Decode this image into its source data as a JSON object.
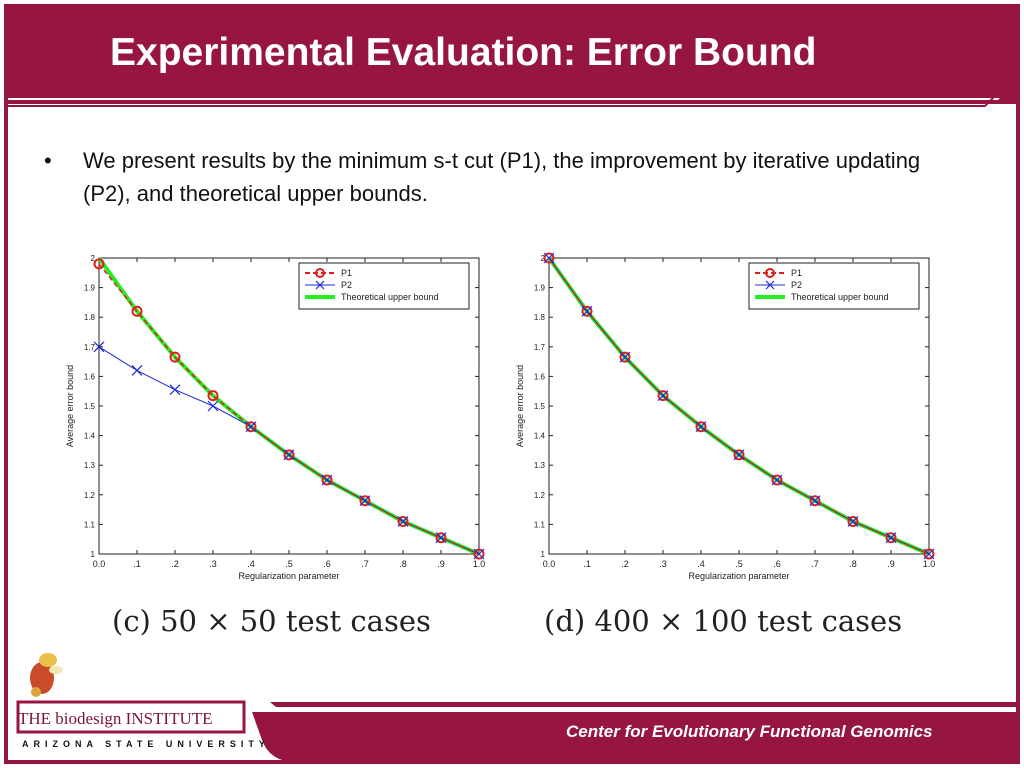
{
  "slide": {
    "title": "Experimental Evaluation: Error Bound",
    "bullet_symbol": "•",
    "bullet_text": "We present results by the minimum s-t cut (P1), the improvement by iterative updating (P2), and theoretical upper bounds.",
    "footer_text": "Center for Evolutionary Functional Genomics",
    "logo_line1": "THE biodesign INSTITUTE",
    "logo_line2": "ARIZONA STATE UNIVERSITY",
    "colors": {
      "brand_maroon": "#96163f",
      "p1": "#e01e1e",
      "p2": "#1f2ad6",
      "bound": "#22ee22"
    }
  },
  "chart_data": [
    {
      "type": "line",
      "caption": "(c) 50 × 50 test cases",
      "xlabel": "Regularization parameter",
      "ylabel": "Average error bound",
      "xlim": [
        0,
        1
      ],
      "ylim": [
        1,
        2
      ],
      "x_ticks": [
        "0.0",
        ".1",
        ".2",
        ".3",
        ".4",
        ".5",
        ".6",
        ".7",
        ".8",
        ".9",
        "1.0"
      ],
      "y_ticks": [
        "1",
        "1.1",
        "1.2",
        "1.3",
        "1.4",
        "1.5",
        "1.6",
        "1.7",
        "1.8",
        "1.9",
        "2"
      ],
      "legend_position": "top-right",
      "series": [
        {
          "name": "P1",
          "x": [
            0.0,
            0.1,
            0.2,
            0.3,
            0.4,
            0.5,
            0.6,
            0.7,
            0.8,
            0.9,
            1.0
          ],
          "values": [
            1.98,
            1.82,
            1.665,
            1.535,
            1.43,
            1.335,
            1.25,
            1.18,
            1.11,
            1.055,
            1.0
          ]
        },
        {
          "name": "P2",
          "x": [
            0.0,
            0.1,
            0.2,
            0.3,
            0.4,
            0.5,
            0.6,
            0.7,
            0.8,
            0.9,
            1.0
          ],
          "values": [
            1.7,
            1.62,
            1.555,
            1.5,
            1.43,
            1.335,
            1.25,
            1.18,
            1.11,
            1.055,
            1.0
          ]
        },
        {
          "name": "Theoretical upper bound",
          "x": [
            0.0,
            0.1,
            0.2,
            0.3,
            0.4,
            0.5,
            0.6,
            0.7,
            0.8,
            0.9,
            1.0
          ],
          "values": [
            2.0,
            1.82,
            1.665,
            1.535,
            1.43,
            1.335,
            1.25,
            1.18,
            1.11,
            1.055,
            1.0
          ]
        }
      ]
    },
    {
      "type": "line",
      "caption": "(d) 400 × 100 test cases",
      "xlabel": "Regularization parameter",
      "ylabel": "Average error bound",
      "xlim": [
        0,
        1
      ],
      "ylim": [
        1,
        2
      ],
      "x_ticks": [
        "0.0",
        ".1",
        ".2",
        ".3",
        ".4",
        ".5",
        ".6",
        ".7",
        ".8",
        ".9",
        "1.0"
      ],
      "y_ticks": [
        "1",
        "1.1",
        "1.2",
        "1.3",
        "1.4",
        "1.5",
        "1.6",
        "1.7",
        "1.8",
        "1.9",
        "2"
      ],
      "legend_position": "top-right",
      "series": [
        {
          "name": "P1",
          "x": [
            0.0,
            0.1,
            0.2,
            0.3,
            0.4,
            0.5,
            0.6,
            0.7,
            0.8,
            0.9,
            1.0
          ],
          "values": [
            2.0,
            1.82,
            1.665,
            1.535,
            1.43,
            1.335,
            1.25,
            1.18,
            1.11,
            1.055,
            1.0
          ]
        },
        {
          "name": "P2",
          "x": [
            0.0,
            0.1,
            0.2,
            0.3,
            0.4,
            0.5,
            0.6,
            0.7,
            0.8,
            0.9,
            1.0
          ],
          "values": [
            2.0,
            1.82,
            1.665,
            1.535,
            1.43,
            1.335,
            1.25,
            1.18,
            1.11,
            1.055,
            1.0
          ]
        },
        {
          "name": "Theoretical upper bound",
          "x": [
            0.0,
            0.1,
            0.2,
            0.3,
            0.4,
            0.5,
            0.6,
            0.7,
            0.8,
            0.9,
            1.0
          ],
          "values": [
            2.0,
            1.82,
            1.665,
            1.535,
            1.43,
            1.335,
            1.25,
            1.18,
            1.11,
            1.055,
            1.0
          ]
        }
      ]
    }
  ]
}
